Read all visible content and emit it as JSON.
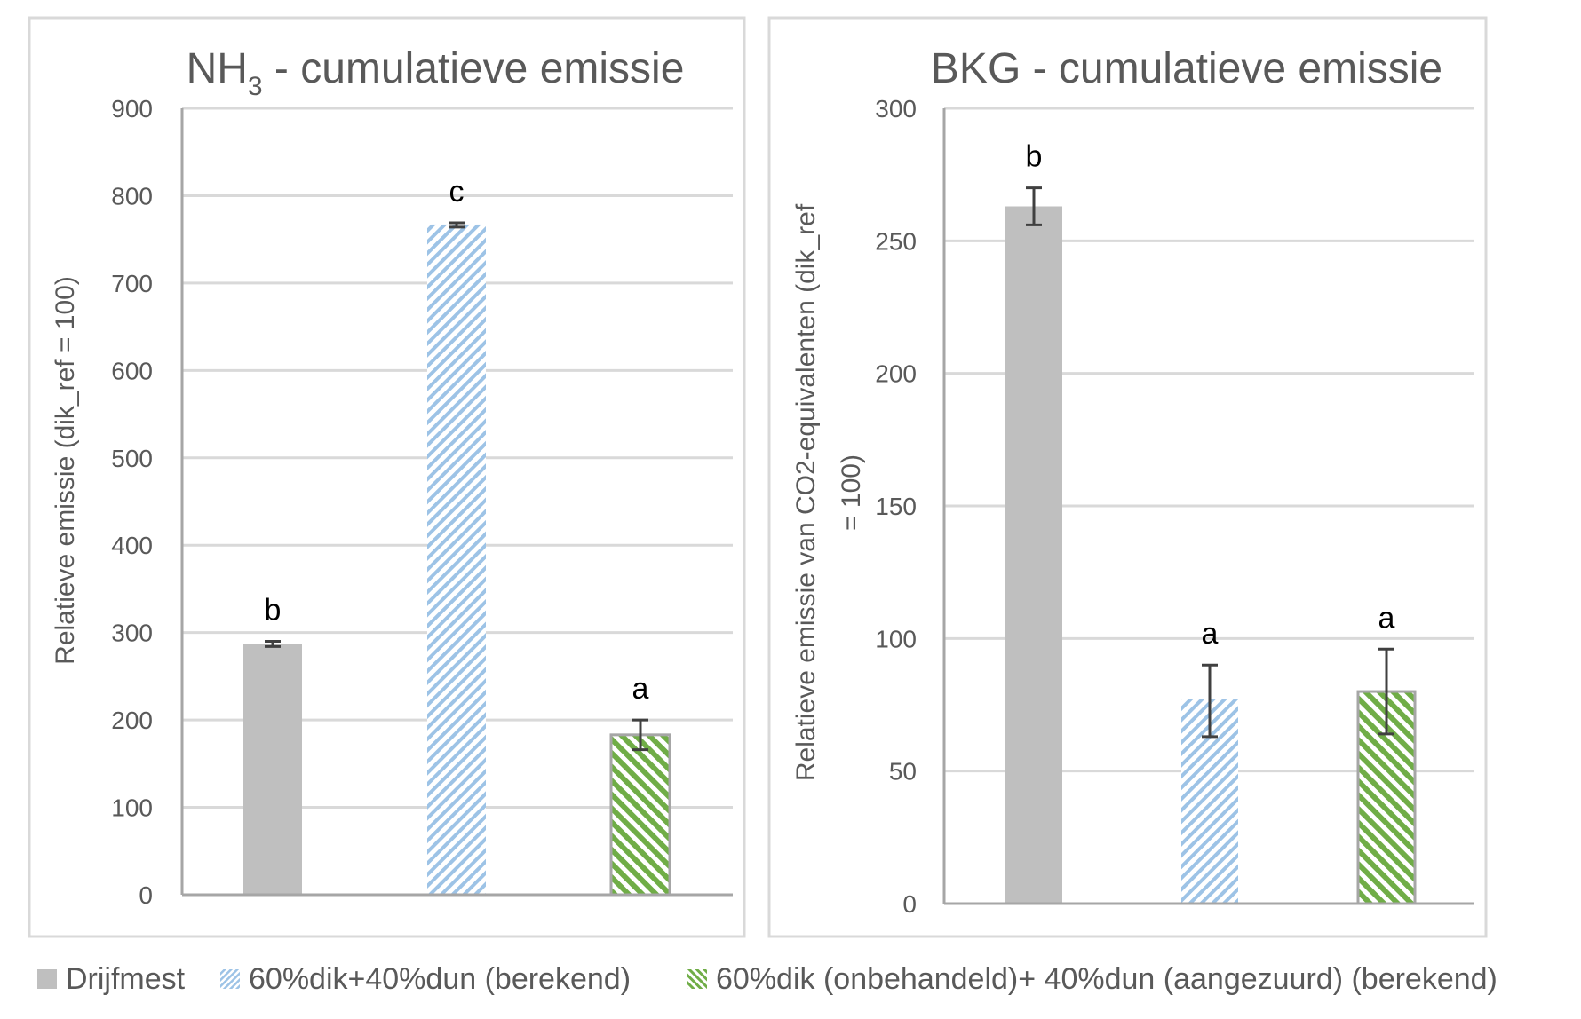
{
  "chart_data": [
    {
      "type": "bar",
      "title_main": "NH",
      "title_sub": "3",
      "title_rest": " - cumulatieve emissie",
      "ylabel": "Relatieve emissie (dik_ref = 100)",
      "ylim": [
        0,
        900
      ],
      "yticks": [
        "0",
        "100",
        "200",
        "300",
        "400",
        "500",
        "600",
        "700",
        "800",
        "900"
      ],
      "grid": true,
      "bars": [
        {
          "series": "Drijfmest",
          "value": 287,
          "err_low": 284,
          "err_high": 290,
          "letter": "b"
        },
        {
          "series": "60%dik+40%dun (berekend)",
          "value": 767,
          "err_low": 764,
          "err_high": 769,
          "letter": "c"
        },
        {
          "series": "60%dik (onbehandeld)+ 40%dun (aangezuurd) (berekend)",
          "value": 183,
          "err_low": 166,
          "err_high": 200,
          "letter": "a"
        }
      ]
    },
    {
      "type": "bar",
      "title_main": "BKG - cumulatieve emissie",
      "title_sub": "",
      "title_rest": "",
      "ylabel_line1": "Relatieve emissie van CO2-equivalenten (dik_ref",
      "ylabel_line2": "= 100)",
      "ylim": [
        0,
        300
      ],
      "yticks": [
        "0",
        "50",
        "100",
        "150",
        "200",
        "250",
        "300"
      ],
      "grid": true,
      "bars": [
        {
          "series": "Drijfmest",
          "value": 263,
          "err_low": 256,
          "err_high": 270,
          "letter": "b"
        },
        {
          "series": "60%dik+40%dun (berekend)",
          "value": 77,
          "err_low": 63,
          "err_high": 90,
          "letter": "a"
        },
        {
          "series": "60%dik (onbehandeld)+ 40%dun (aangezuurd) (berekend)",
          "value": 80,
          "err_low": 64,
          "err_high": 96,
          "letter": "a"
        }
      ]
    }
  ],
  "legend": [
    {
      "label": "Drijfmest",
      "style": "solid",
      "color": "#bfbfbf"
    },
    {
      "label": "60%dik+40%dun (berekend)",
      "style": "hatch-light",
      "color": "#9dc3e6"
    },
    {
      "label": "60%dik (onbehandeld)+ 40%dun (aangezuurd) (berekend)",
      "style": "hatch-dense",
      "color": "#70ad47"
    }
  ],
  "colors": {
    "solid": "#bfbfbf",
    "blue_hatch": "#9dc3e6",
    "green_hatch": "#70ad47",
    "grid": "#d9d9d9",
    "axis": "#a6a6a6",
    "error": "#404040",
    "panel_border": "#d9d9d9"
  }
}
